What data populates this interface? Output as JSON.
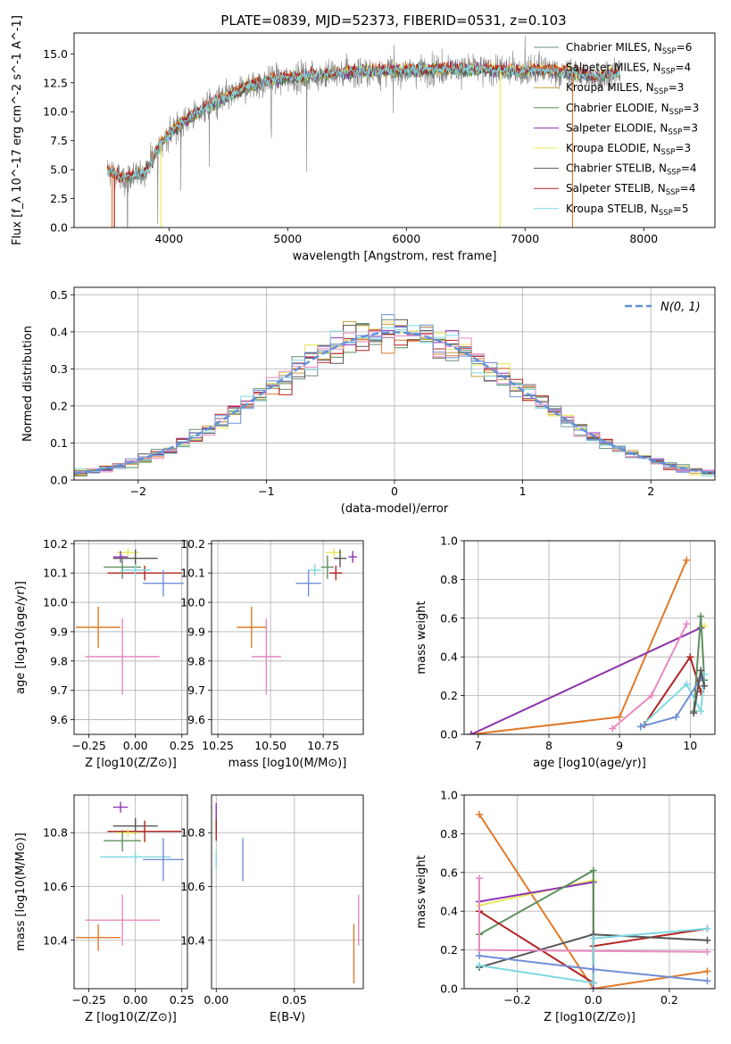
{
  "figure": {
    "title": "PLATE=0839, MJD=52373, FIBERID=0531, z=0.103"
  },
  "colors": {
    "Chabrier MILES": "#6b8f7a",
    "Salpeter MILES": "#e07a2a",
    "Kroupa MILES": "#c79a3c",
    "Chabrier ELODIE": "#5f8f5f",
    "Salpeter ELODIE": "#8e35b5",
    "Kroupa ELODIE": "#e8e85a",
    "Chabrier STELIB": "#555555",
    "Salpeter STELIB": "#b22222",
    "Kroupa STELIB": "#7fd8e0",
    "data": "#808080",
    "normal": "#6090d8",
    "pink": "#e888c0",
    "blue": "#6f8fd8"
  },
  "chart_data": [
    {
      "type": "line",
      "title": "PLATE=0839, MJD=52373, FIBERID=0531, z=0.103",
      "xlabel": "wavelength [Angstrom, rest frame]",
      "ylabel": "Flux [f_λ 10^-17 erg cm^-2 s^-1 A^-1]",
      "xlim": [
        3200,
        8600
      ],
      "ylim": [
        0,
        16.8
      ],
      "xticks": [
        4000,
        5000,
        6000,
        7000,
        8000
      ],
      "yticks": [
        0.0,
        2.5,
        5.0,
        7.5,
        10.0,
        12.5,
        15.0
      ],
      "legend_position": "top-right",
      "legend": [
        "Chabrier MILES, N_SSP=6",
        "Salpeter MILES, N_SSP=4",
        "Kroupa MILES, N_SSP=3",
        "Chabrier ELODIE, N_SSP=3",
        "Salpeter ELODIE, N_SSP=3",
        "Kroupa ELODIE, N_SSP=3",
        "Chabrier STELIB, N_SSP=4",
        "Salpeter STELIB, N_SSP=4",
        "Kroupa STELIB, N_SSP=5"
      ],
      "continuum": {
        "x": [
          3480,
          3600,
          3800,
          3950,
          4100,
          4300,
          4500,
          4700,
          4900,
          5100,
          5300,
          5500,
          5800,
          6100,
          6400,
          6700,
          7000,
          7200,
          7400,
          7600,
          7800
        ],
        "y": [
          5.0,
          4.2,
          4.8,
          7.5,
          9.0,
          10.3,
          11.3,
          12.3,
          12.8,
          13.0,
          13.2,
          13.4,
          13.5,
          13.6,
          13.7,
          13.6,
          13.5,
          13.6,
          13.3,
          13.0,
          13.4
        ]
      }
    },
    {
      "type": "line",
      "xlabel": "(data-model)/error",
      "ylabel": "Normed distribution",
      "xlim": [
        -2.5,
        2.5
      ],
      "ylim": [
        0,
        0.52
      ],
      "xticks": [
        -2,
        -1,
        0,
        1,
        2
      ],
      "yticks": [
        0.0,
        0.1,
        0.2,
        0.3,
        0.4,
        0.5
      ],
      "legend": [
        "N(0, 1)"
      ],
      "legend_position": "top-right",
      "bin_width": 0.1,
      "bin_start": -2.5
    },
    {
      "type": "scatter",
      "xlabel": "Z [log10(Z/Z⊙)]",
      "ylabel": "age  [log10(age/yr)]",
      "xlim": [
        -0.33,
        0.28
      ],
      "ylim": [
        9.55,
        10.21
      ],
      "xticks": [
        -0.25,
        0.0,
        0.25
      ],
      "xticklabels": [
        "−0.25",
        "0.00",
        "0.25"
      ],
      "yticks": [
        9.6,
        9.7,
        9.8,
        9.9,
        10.0,
        10.1,
        10.2
      ],
      "points": [
        {
          "x": -0.2,
          "y": 9.915,
          "xerr": 0.12,
          "yerr": 0.07,
          "color": "#e07a2a"
        },
        {
          "x": -0.07,
          "y": 9.815,
          "xerr": 0.2,
          "yerr": 0.13,
          "color": "#e888c0"
        },
        {
          "x": -0.04,
          "y": 10.17,
          "xerr": 0.06,
          "yerr": 0.015,
          "color": "#e8e85a"
        },
        {
          "x": 0.0,
          "y": 10.15,
          "xerr": 0.12,
          "yerr": 0.03,
          "color": "#555555"
        },
        {
          "x": 0.05,
          "y": 10.1,
          "xerr": 0.2,
          "yerr": 0.025,
          "color": "#b22222"
        },
        {
          "x": -0.07,
          "y": 10.12,
          "xerr": 0.1,
          "yerr": 0.04,
          "color": "#5f8f5f"
        },
        {
          "x": 0.15,
          "y": 10.065,
          "xerr": 0.11,
          "yerr": 0.045,
          "color": "#6f8fd8"
        },
        {
          "x": 0.0,
          "y": 10.11,
          "xerr": 0.08,
          "yerr": 0.02,
          "color": "#7fd8e0"
        },
        {
          "x": -0.08,
          "y": 10.155,
          "xerr": 0.04,
          "yerr": 0.02,
          "color": "#8e35b5"
        }
      ]
    },
    {
      "type": "scatter",
      "xlabel": "mass [log10(M/M⊙)]",
      "ylabel": "",
      "xlim": [
        10.22,
        10.94
      ],
      "ylim": [
        9.55,
        10.21
      ],
      "xticks": [
        10.25,
        10.5,
        10.75
      ],
      "xticklabels": [
        "10.25",
        "10.50",
        "10.75"
      ],
      "yticks": [
        9.6,
        9.7,
        9.8,
        9.9,
        10.0,
        10.1,
        10.2
      ],
      "points": [
        {
          "x": 10.41,
          "y": 9.915,
          "xerr": 0.07,
          "yerr": 0.07,
          "color": "#e07a2a"
        },
        {
          "x": 10.48,
          "y": 9.815,
          "xerr": 0.07,
          "yerr": 0.13,
          "color": "#e888c0"
        },
        {
          "x": 10.68,
          "y": 10.065,
          "xerr": 0.06,
          "yerr": 0.045,
          "color": "#6f8fd8"
        },
        {
          "x": 10.71,
          "y": 10.11,
          "xerr": 0.03,
          "yerr": 0.02,
          "color": "#7fd8e0"
        },
        {
          "x": 10.77,
          "y": 10.12,
          "xerr": 0.03,
          "yerr": 0.04,
          "color": "#5f8f5f"
        },
        {
          "x": 10.8,
          "y": 10.17,
          "xerr": 0.04,
          "yerr": 0.015,
          "color": "#e8e85a"
        },
        {
          "x": 10.83,
          "y": 10.15,
          "xerr": 0.03,
          "yerr": 0.03,
          "color": "#555555"
        },
        {
          "x": 10.81,
          "y": 10.1,
          "xerr": 0.03,
          "yerr": 0.025,
          "color": "#b22222"
        },
        {
          "x": 10.89,
          "y": 10.155,
          "xerr": 0.02,
          "yerr": 0.02,
          "color": "#8e35b5"
        }
      ]
    },
    {
      "type": "line",
      "xlabel": "age  [log10(age/yr)]",
      "ylabel": "mass weight",
      "xlim": [
        6.8,
        10.35
      ],
      "ylim": [
        0,
        1.0
      ],
      "xticks": [
        7,
        8,
        9,
        10
      ],
      "yticks": [
        0.0,
        0.2,
        0.4,
        0.6,
        0.8,
        1.0
      ],
      "series": [
        {
          "color": "#e07a2a",
          "x": [
            6.9,
            9.0,
            9.95
          ],
          "y": [
            0.0,
            0.09,
            0.9
          ]
        },
        {
          "color": "#e8e85a",
          "x": [
            6.9,
            10.2
          ],
          "y": [
            0.0,
            0.56
          ]
        },
        {
          "color": "#8e35b5",
          "x": [
            6.9,
            10.15
          ],
          "y": [
            0.0,
            0.55
          ]
        },
        {
          "color": "#e888c0",
          "x": [
            8.9,
            9.45,
            9.95
          ],
          "y": [
            0.03,
            0.2,
            0.57
          ]
        },
        {
          "color": "#b22222",
          "x": [
            9.35,
            10.0,
            10.15
          ],
          "y": [
            0.05,
            0.4,
            0.22
          ]
        },
        {
          "color": "#5f8f5f",
          "x": [
            10.05,
            10.15,
            10.2
          ],
          "y": [
            0.12,
            0.61,
            0.28
          ]
        },
        {
          "color": "#7fd8e0",
          "x": [
            9.3,
            9.95,
            10.15,
            10.2
          ],
          "y": [
            0.04,
            0.26,
            0.12,
            0.31
          ]
        },
        {
          "color": "#6f8fd8",
          "x": [
            9.3,
            9.8,
            10.15
          ],
          "y": [
            0.04,
            0.09,
            0.29
          ]
        },
        {
          "color": "#555555",
          "x": [
            10.05,
            10.15,
            10.2
          ],
          "y": [
            0.11,
            0.33,
            0.25
          ]
        }
      ]
    },
    {
      "type": "scatter",
      "xlabel": "Z [log10(Z/Z⊙)]",
      "ylabel": "mass [log10(M/M⊙)]",
      "xlim": [
        -0.33,
        0.28
      ],
      "ylim": [
        10.22,
        10.94
      ],
      "xticks": [
        -0.25,
        0.0,
        0.25
      ],
      "xticklabels": [
        "−0.25",
        "0.00",
        "0.25"
      ],
      "yticks": [
        10.4,
        10.6,
        10.8
      ],
      "points": [
        {
          "x": -0.2,
          "y": 10.41,
          "xerr": 0.12,
          "yerr": 0.05,
          "color": "#e07a2a"
        },
        {
          "x": -0.07,
          "y": 10.475,
          "xerr": 0.2,
          "yerr": 0.095,
          "color": "#e888c0"
        },
        {
          "x": -0.08,
          "y": 10.895,
          "xerr": 0.04,
          "yerr": 0.02,
          "color": "#8e35b5"
        },
        {
          "x": 0.0,
          "y": 10.825,
          "xerr": 0.12,
          "yerr": 0.03,
          "color": "#555555"
        },
        {
          "x": 0.05,
          "y": 10.805,
          "xerr": 0.2,
          "yerr": 0.04,
          "color": "#b22222"
        },
        {
          "x": -0.04,
          "y": 10.8,
          "xerr": 0.06,
          "yerr": 0.015,
          "color": "#e8e85a"
        },
        {
          "x": -0.07,
          "y": 10.77,
          "xerr": 0.1,
          "yerr": 0.04,
          "color": "#5f8f5f"
        },
        {
          "x": 0.0,
          "y": 10.71,
          "xerr": 0.19,
          "yerr": 0.02,
          "color": "#7fd8e0"
        },
        {
          "x": 0.15,
          "y": 10.7,
          "xerr": 0.11,
          "yerr": 0.08,
          "color": "#6f8fd8"
        }
      ]
    },
    {
      "type": "scatter",
      "xlabel": "E(B-V)",
      "ylabel": "",
      "xlim": [
        -0.003,
        0.094
      ],
      "ylim": [
        10.22,
        10.94
      ],
      "xticks": [
        0.0,
        0.05
      ],
      "xticklabels": [
        "0.00",
        "0.05"
      ],
      "yticks": [
        10.4,
        10.6,
        10.8
      ],
      "points": [
        {
          "x": 0.0,
          "y": 10.86,
          "yerr": 0.05,
          "color": "#8e35b5"
        },
        {
          "x": 0.0,
          "y": 10.81,
          "yerr": 0.04,
          "color": "#b22222"
        },
        {
          "x": 0.0,
          "y": 10.7,
          "yerr": 0.035,
          "color": "#7fd8e0"
        },
        {
          "x": 0.017,
          "y": 10.7,
          "yerr": 0.08,
          "color": "#6f8fd8"
        },
        {
          "x": 0.091,
          "y": 10.475,
          "yerr": 0.095,
          "color": "#e888c0"
        },
        {
          "x": 0.088,
          "y": 10.35,
          "yerr": 0.11,
          "color": "#e07a2a"
        }
      ]
    },
    {
      "type": "line",
      "xlabel": "Z [log10(Z/Z⊙)]",
      "ylabel": "mass weight",
      "xlim": [
        -0.34,
        0.32
      ],
      "ylim": [
        0,
        1.0
      ],
      "xticks": [
        -0.2,
        0.0,
        0.2
      ],
      "xticklabels": [
        "−0.2",
        "0.0",
        "0.2"
      ],
      "yticks": [
        0.0,
        0.2,
        0.4,
        0.6,
        0.8,
        1.0
      ],
      "series": [
        {
          "color": "#e07a2a",
          "x": [
            -0.3,
            0.0,
            0.3
          ],
          "y": [
            0.9,
            0.0,
            0.09
          ]
        },
        {
          "color": "#e8e85a",
          "x": [
            -0.3,
            0.0,
            0.0
          ],
          "y": [
            0.43,
            0.56,
            0.0
          ]
        },
        {
          "color": "#8e35b5",
          "x": [
            -0.3,
            0.0,
            0.0
          ],
          "y": [
            0.45,
            0.55,
            0.0
          ]
        },
        {
          "color": "#5f8f5f",
          "x": [
            -0.3,
            0.0,
            0.0
          ],
          "y": [
            0.28,
            0.61,
            0.1
          ]
        },
        {
          "color": "#b22222",
          "x": [
            -0.3,
            0.0,
            0.0,
            0.3
          ],
          "y": [
            0.4,
            0.03,
            0.22,
            0.31
          ]
        },
        {
          "color": "#555555",
          "x": [
            -0.3,
            0.0,
            0.3
          ],
          "y": [
            0.11,
            0.28,
            0.25
          ]
        },
        {
          "color": "#e888c0",
          "x": [
            -0.3,
            -0.3,
            0.3
          ],
          "y": [
            0.57,
            0.2,
            0.19
          ]
        },
        {
          "color": "#7fd8e0",
          "x": [
            -0.3,
            0.0,
            0.0,
            0.3
          ],
          "y": [
            0.12,
            0.03,
            0.26,
            0.31
          ]
        },
        {
          "color": "#6f8fd8",
          "x": [
            -0.3,
            0.0,
            0.3
          ],
          "y": [
            0.17,
            0.1,
            0.04
          ]
        }
      ]
    }
  ]
}
